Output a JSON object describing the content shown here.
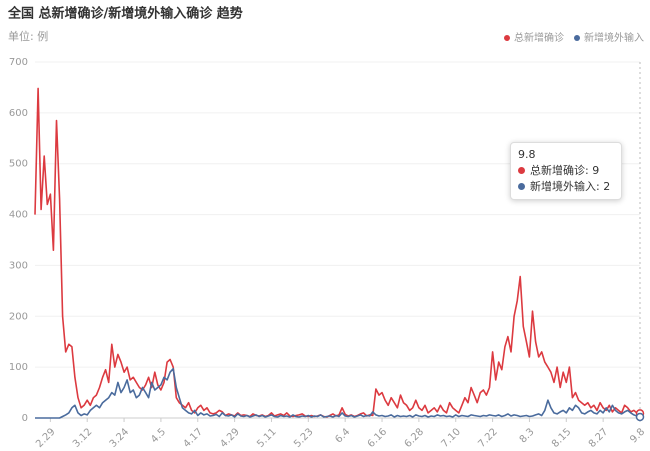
{
  "chart_data": {
    "type": "line",
    "title": "全国 总新增确诊/新增境外输入确诊 趋势",
    "subtitle": "单位: 例",
    "categories": [
      null,
      null,
      null,
      null,
      null,
      "2.29",
      null,
      null,
      null,
      null,
      null,
      null,
      null,
      null,
      null,
      null,
      null,
      "3.12",
      null,
      null,
      null,
      null,
      null,
      null,
      null,
      null,
      null,
      null,
      null,
      "3.24",
      null,
      null,
      null,
      null,
      null,
      null,
      null,
      null,
      null,
      null,
      null,
      "4.5",
      null,
      null,
      null,
      null,
      null,
      null,
      null,
      null,
      null,
      null,
      null,
      "4.17",
      null,
      null,
      null,
      null,
      null,
      null,
      null,
      null,
      null,
      null,
      null,
      "4.29",
      null,
      null,
      null,
      null,
      null,
      null,
      null,
      null,
      null,
      null,
      null,
      "5.11",
      null,
      null,
      null,
      null,
      null,
      null,
      null,
      null,
      null,
      null,
      null,
      "5.23",
      null,
      null,
      null,
      null,
      null,
      null,
      null,
      null,
      null,
      null,
      null,
      "6.4",
      null,
      null,
      null,
      null,
      null,
      null,
      null,
      null,
      null,
      null,
      null,
      "6.16",
      null,
      null,
      null,
      null,
      null,
      null,
      null,
      null,
      null,
      null,
      null,
      "6.28",
      null,
      null,
      null,
      null,
      null,
      null,
      null,
      null,
      null,
      null,
      null,
      "7.10",
      null,
      null,
      null,
      null,
      null,
      null,
      null,
      null,
      null,
      null,
      null,
      "7.22",
      null,
      null,
      null,
      null,
      null,
      null,
      null,
      null,
      null,
      null,
      null,
      "8.3",
      null,
      null,
      null,
      null,
      null,
      null,
      null,
      null,
      null,
      null,
      null,
      "8.15",
      null,
      null,
      null,
      null,
      null,
      null,
      null,
      null,
      null,
      null,
      null,
      "8.27",
      null,
      null,
      null,
      null,
      null,
      null,
      null,
      null,
      null,
      null,
      null,
      "9.8"
    ],
    "series": [
      {
        "name": "总新增确诊",
        "color": "#dc3a40",
        "values": [
          400,
          648,
          410,
          515,
          420,
          440,
          330,
          585,
          430,
          200,
          130,
          145,
          140,
          80,
          40,
          20,
          25,
          35,
          25,
          40,
          45,
          60,
          80,
          95,
          70,
          145,
          100,
          125,
          110,
          90,
          100,
          75,
          80,
          70,
          60,
          55,
          65,
          80,
          60,
          90,
          65,
          55,
          70,
          110,
          115,
          100,
          40,
          30,
          25,
          20,
          30,
          15,
          10,
          20,
          25,
          15,
          20,
          10,
          8,
          10,
          15,
          12,
          5,
          8,
          6,
          4,
          10,
          5,
          6,
          5,
          3,
          8,
          5,
          4,
          6,
          3,
          5,
          10,
          4,
          6,
          8,
          5,
          10,
          4,
          3,
          5,
          6,
          8,
          4,
          3,
          5,
          3,
          4,
          6,
          3,
          2,
          5,
          8,
          4,
          6,
          20,
          7,
          4,
          6,
          3,
          5,
          8,
          10,
          4,
          6,
          5,
          57,
          45,
          50,
          35,
          25,
          40,
          30,
          20,
          45,
          30,
          25,
          15,
          20,
          35,
          20,
          15,
          25,
          10,
          15,
          20,
          12,
          25,
          15,
          10,
          30,
          20,
          15,
          10,
          25,
          40,
          30,
          60,
          45,
          30,
          50,
          55,
          45,
          60,
          130,
          75,
          110,
          95,
          140,
          160,
          130,
          200,
          230,
          278,
          180,
          150,
          120,
          210,
          150,
          120,
          130,
          110,
          100,
          90,
          70,
          100,
          60,
          90,
          70,
          100,
          40,
          50,
          35,
          30,
          25,
          30,
          20,
          25,
          15,
          30,
          20,
          15,
          25,
          12,
          20,
          15,
          10,
          25,
          20,
          12,
          15,
          10,
          9
        ]
      },
      {
        "name": "新增境外输入",
        "color": "#4a6b9d",
        "values": [
          0,
          0,
          0,
          0,
          0,
          0,
          0,
          0,
          0,
          3,
          6,
          10,
          20,
          25,
          10,
          5,
          8,
          6,
          15,
          20,
          25,
          20,
          30,
          35,
          40,
          50,
          45,
          70,
          50,
          60,
          75,
          50,
          55,
          40,
          45,
          60,
          50,
          40,
          70,
          55,
          60,
          65,
          80,
          75,
          90,
          97,
          60,
          40,
          20,
          15,
          10,
          8,
          15,
          5,
          10,
          6,
          8,
          4,
          5,
          7,
          3,
          10,
          5,
          4,
          6,
          2,
          8,
          4,
          3,
          5,
          2,
          4,
          6,
          3,
          5,
          2,
          4,
          6,
          3,
          2,
          5,
          3,
          4,
          2,
          6,
          3,
          2,
          4,
          3,
          5,
          2,
          4,
          3,
          6,
          2,
          3,
          4,
          2,
          5,
          3,
          10,
          4,
          3,
          5,
          2,
          4,
          6,
          3,
          5,
          4,
          12,
          6,
          4,
          5,
          3,
          4,
          6,
          2,
          5,
          3,
          4,
          3,
          5,
          2,
          6,
          4,
          3,
          5,
          2,
          4,
          3,
          6,
          4,
          5,
          3,
          4,
          2,
          6,
          3,
          5,
          4,
          3,
          6,
          5,
          4,
          3,
          5,
          4,
          6,
          5,
          4,
          6,
          3,
          5,
          8,
          4,
          6,
          5,
          3,
          4,
          5,
          3,
          4,
          6,
          8,
          5,
          15,
          35,
          20,
          10,
          8,
          12,
          15,
          10,
          20,
          15,
          25,
          20,
          10,
          8,
          12,
          15,
          10,
          8,
          15,
          10,
          20,
          12,
          25,
          15,
          10,
          8,
          12,
          15,
          10,
          6,
          4,
          2
        ]
      }
    ],
    "ylim": [
      0,
      700
    ],
    "yticks": [
      0,
      100,
      200,
      300,
      400,
      500,
      600,
      700
    ],
    "grid": true,
    "legend": "top-right",
    "tooltip_rows": [
      "总新增确诊: 9",
      "新增境外输入: 2"
    ]
  }
}
